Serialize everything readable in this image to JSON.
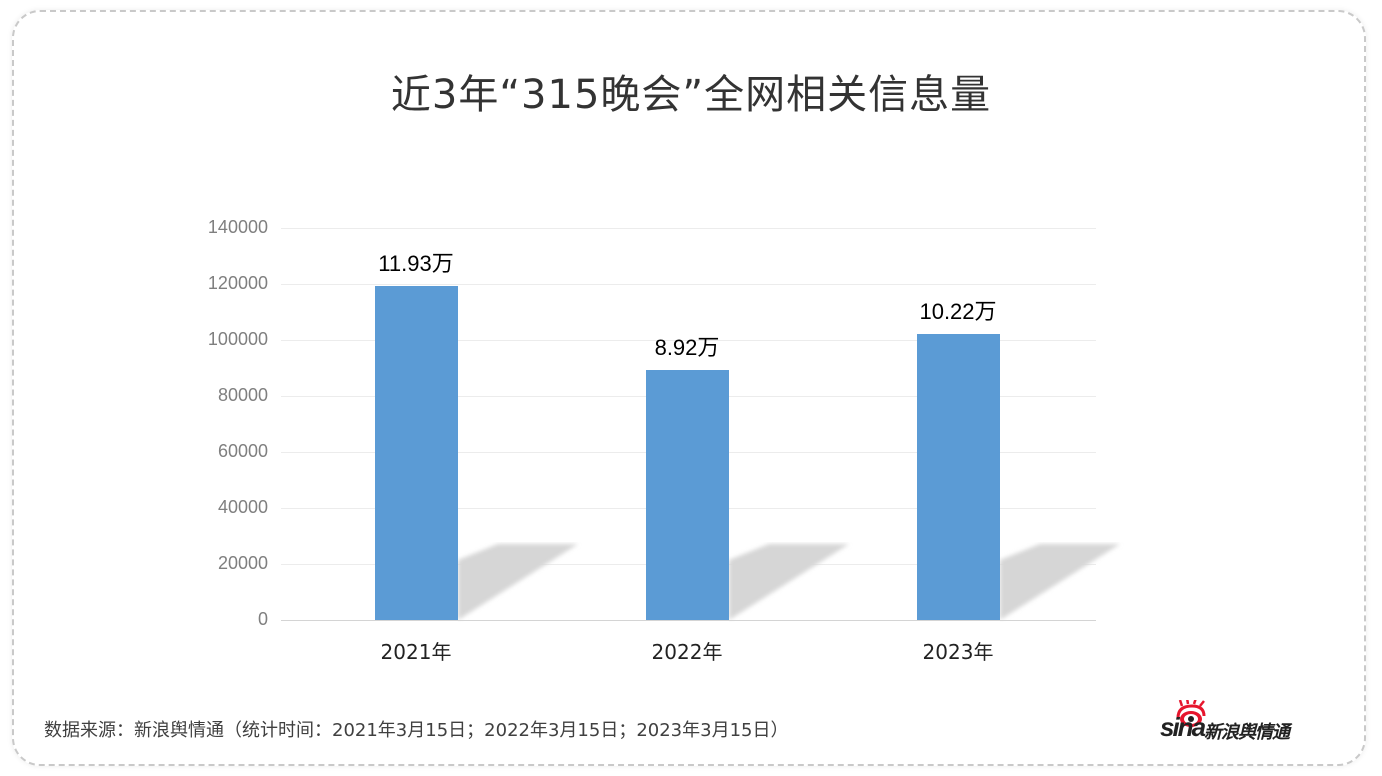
{
  "title": "近3年“315晚会”全网相关信息量",
  "chart_data": {
    "type": "bar",
    "title": "近3年“315晚会”全网相关信息量",
    "categories": [
      "2021年",
      "2022年",
      "2023年"
    ],
    "values": [
      119300,
      89200,
      102200
    ],
    "data_labels": [
      "11.93万",
      "8.92万",
      "10.22万"
    ],
    "xlabel": "",
    "ylabel": "",
    "ylim": [
      0,
      140000
    ],
    "yticks": [
      "0",
      "20000",
      "40000",
      "60000",
      "80000",
      "100000",
      "120000",
      "140000"
    ],
    "grid": true,
    "legend": null,
    "bar_color": "#5b9bd5"
  },
  "footer": {
    "source": "数据来源：新浪舆情通（统计时间：2021年3月15日；2022年3月15日；2023年3月15日）",
    "logo_brand": "sina",
    "logo_text": "新浪舆情通"
  }
}
